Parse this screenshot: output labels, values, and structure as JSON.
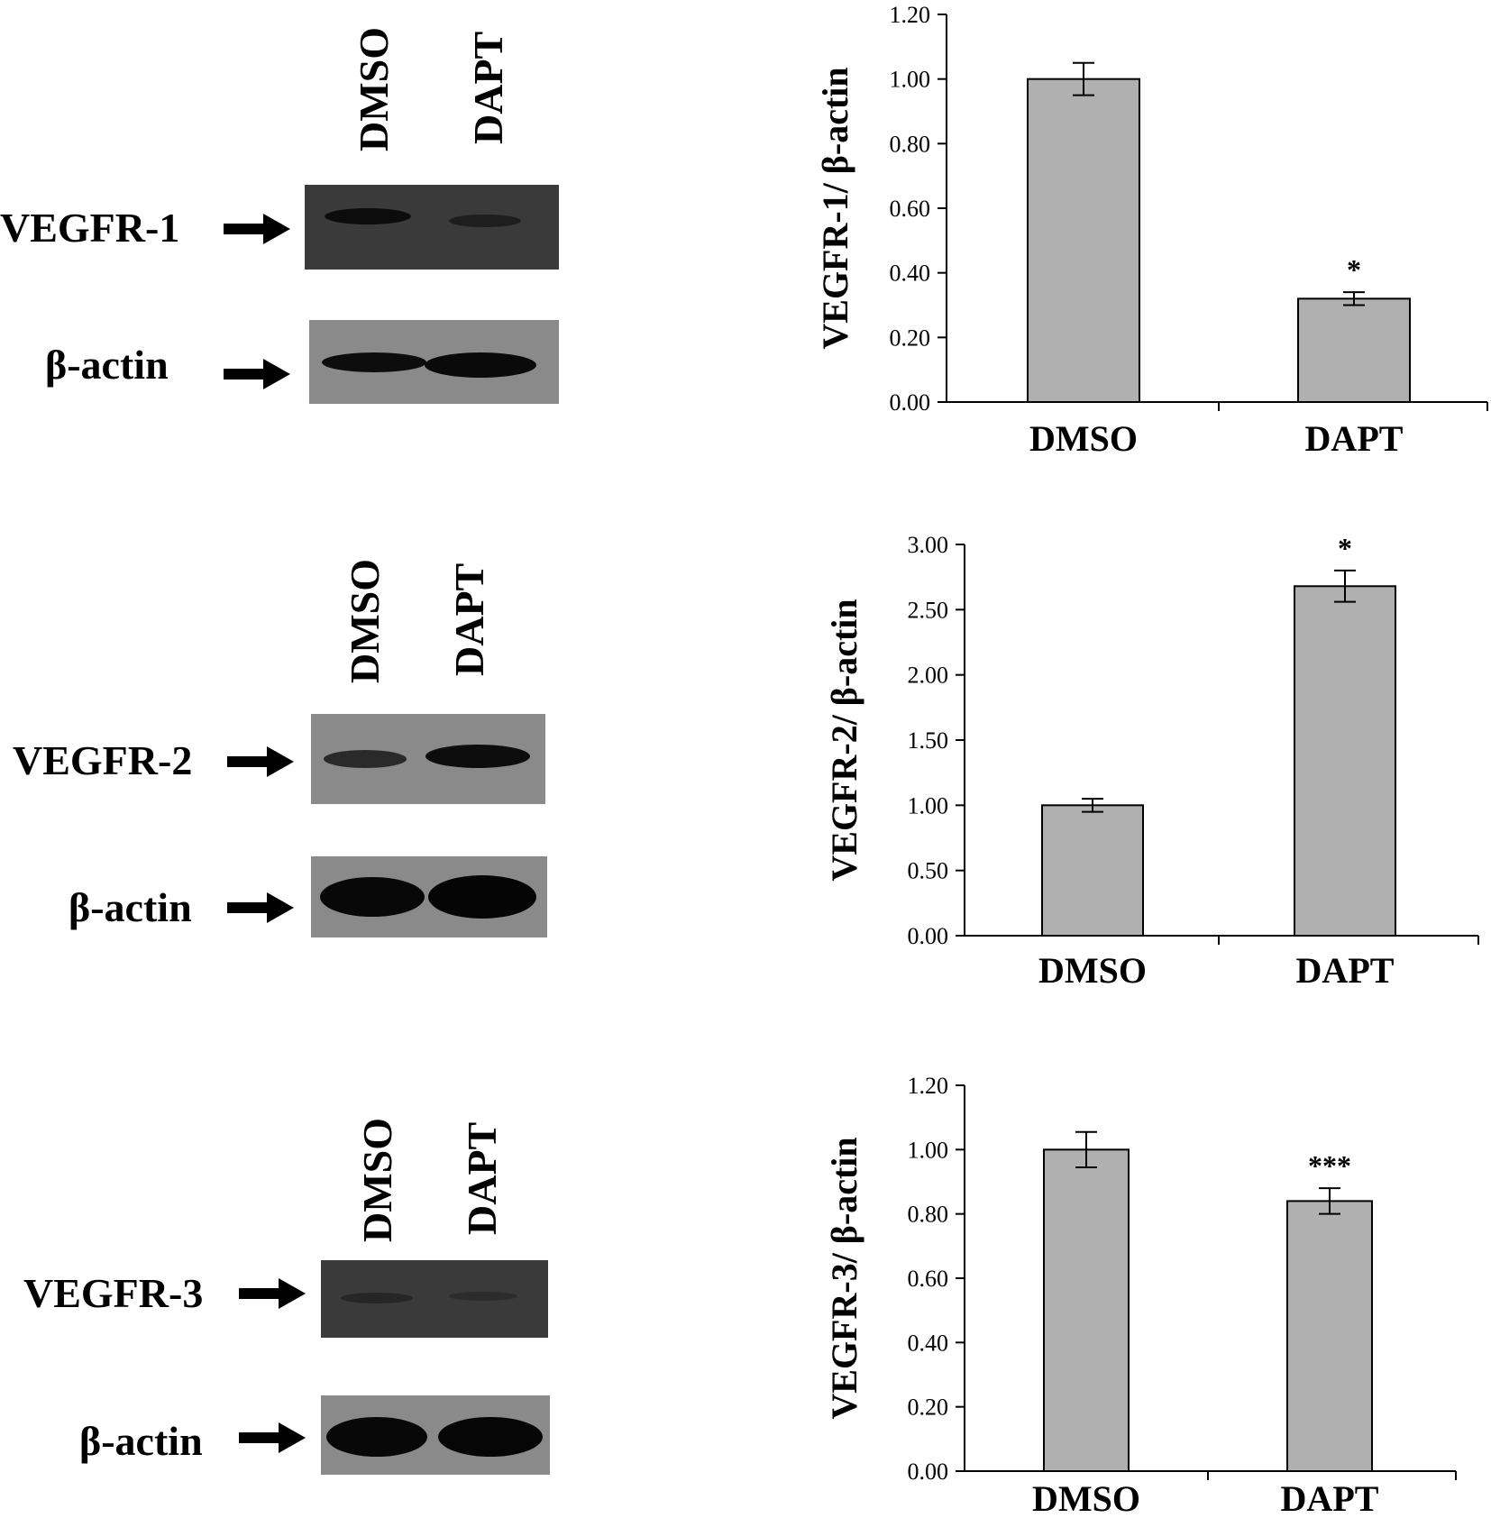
{
  "panels": [
    {
      "blot": {
        "lanes": [
          "DMSO",
          "DAPT"
        ],
        "target_label": "VEGFR-1",
        "loading_label": "β-actin"
      }
    },
    {
      "blot": {
        "lanes": [
          "DMSO",
          "DAPT"
        ],
        "target_label": "VEGFR-2",
        "loading_label": "β-actin"
      }
    },
    {
      "blot": {
        "lanes": [
          "DMSO",
          "DAPT"
        ],
        "target_label": "VEGFR-3",
        "loading_label": "β-actin"
      }
    }
  ],
  "colors": {
    "bar_fill": "#b0b0b0",
    "bar_stroke": "#000000",
    "blot_dark": "#3a3a3a",
    "blot_light": "#8a8a8a"
  },
  "chart_data": [
    {
      "type": "bar",
      "categories": [
        "DMSO",
        "DAPT"
      ],
      "values": [
        1.0,
        0.32
      ],
      "errors": [
        0.05,
        0.02
      ],
      "significance": [
        "",
        "*"
      ],
      "ylabel": "VEGFR-1/ β-actin",
      "ylim": [
        0,
        1.2
      ],
      "yticks": [
        "0.00",
        "0.20",
        "0.40",
        "0.60",
        "0.80",
        "1.00",
        "1.20"
      ],
      "ytick_values": [
        0,
        0.2,
        0.4,
        0.6,
        0.8,
        1.0,
        1.2
      ]
    },
    {
      "type": "bar",
      "categories": [
        "DMSO",
        "DAPT"
      ],
      "values": [
        1.0,
        2.68
      ],
      "errors": [
        0.05,
        0.12
      ],
      "significance": [
        "",
        "*"
      ],
      "ylabel": "VEGFR-2/ β-actin",
      "ylim": [
        0,
        3.0
      ],
      "yticks": [
        "0.00",
        "0.50",
        "1.00",
        "1.50",
        "2.00",
        "2.50",
        "3.00"
      ],
      "ytick_values": [
        0,
        0.5,
        1.0,
        1.5,
        2.0,
        2.5,
        3.0
      ]
    },
    {
      "type": "bar",
      "categories": [
        "DMSO",
        "DAPT"
      ],
      "values": [
        1.0,
        0.84
      ],
      "errors": [
        0.055,
        0.04
      ],
      "significance": [
        "",
        "***"
      ],
      "ylabel": "VEGFR-3/ β-actin",
      "ylim": [
        0,
        1.2
      ],
      "yticks": [
        "0.00",
        "0.20",
        "0.40",
        "0.60",
        "0.80",
        "1.00",
        "1.20"
      ],
      "ytick_values": [
        0,
        0.2,
        0.4,
        0.6,
        0.8,
        1.0,
        1.2
      ]
    }
  ]
}
